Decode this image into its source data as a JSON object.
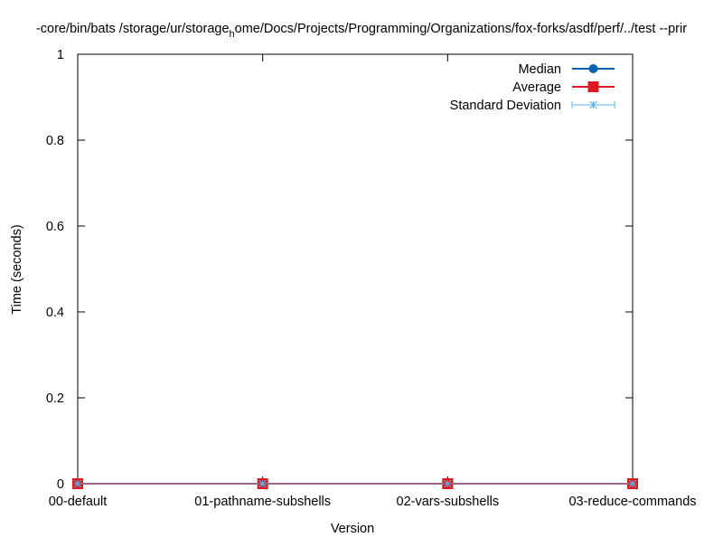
{
  "chart_data": {
    "type": "line",
    "title_main": "-core/bin/bats /storage/ur/storage",
    "title_sub": "h",
    "title_rest": "ome/Docs/Projects/Programming/Organizations/fox-forks/asdf/perf/../test --prir",
    "xlabel": "Version",
    "ylabel": "Time (seconds)",
    "categories": [
      "00-default",
      "01-pathname-subshells",
      "02-vars-subshells",
      "03-reduce-commands"
    ],
    "ylim": [
      0,
      1
    ],
    "yticks": [
      "0",
      "0.2",
      "0.4",
      "0.6",
      "0.8",
      "1"
    ],
    "ytick_values": [
      0,
      0.2,
      0.4,
      0.6,
      0.8,
      1
    ],
    "legend_position": "top-right",
    "series": [
      {
        "name": "Median",
        "values": [
          0,
          0,
          0,
          0
        ],
        "color": "#0060ad",
        "marker": "circle"
      },
      {
        "name": "Average",
        "values": [
          0,
          0,
          0,
          0
        ],
        "color": "#dd181f",
        "marker": "square"
      },
      {
        "name": "Standard Deviation",
        "values": [
          0,
          0,
          0,
          0
        ],
        "color": "#56b4e9",
        "marker": "star-errorbar"
      }
    ]
  }
}
